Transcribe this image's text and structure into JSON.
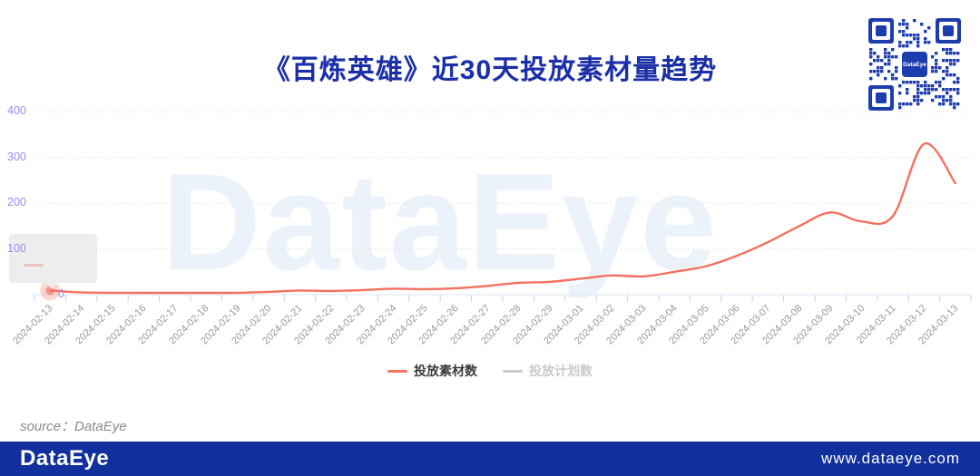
{
  "title": "《百炼英雄》近30天投放素材量趋势",
  "watermark": "DataEye",
  "source_text": "source：DataEye",
  "footer": {
    "logo": "DataEye",
    "url": "www.dataeye.com"
  },
  "qr": {
    "label": "DataEye"
  },
  "legend": [
    {
      "label": "投放素材数",
      "color": "#f4705f",
      "active": true
    },
    {
      "label": "投放计划数",
      "color": "#c9c9c9",
      "active": false
    }
  ],
  "tooltip": {
    "visible": true,
    "series_dash_color": "#f4705f"
  },
  "colors": {
    "title_blue": "#1b2fa8",
    "footer_blue": "#12309d",
    "qr_blue": "#1d3cae",
    "line_salmon": "#f4705f",
    "axis_label_purple": "#9a8cec",
    "x_label_gray": "#999999",
    "watermark_blue": "#ecf2fa"
  },
  "chart_data": {
    "type": "line",
    "title": "《百炼英雄》近30天投放素材量趋势",
    "smooth": true,
    "x": [
      "2024-02-13",
      "2024-02-14",
      "2024-02-15",
      "2024-02-16",
      "2024-02-17",
      "2024-02-18",
      "2024-02-19",
      "2024-02-20",
      "2024-02-21",
      "2024-02-22",
      "2024-02-23",
      "2024-02-24",
      "2024-02-25",
      "2024-02-26",
      "2024-02-27",
      "2024-02-28",
      "2024-02-29",
      "2024-03-01",
      "2024-03-02",
      "2024-03-03",
      "2024-03-04",
      "2024-03-05",
      "2024-03-06",
      "2024-03-07",
      "2024-03-08",
      "2024-03-09",
      "2024-03-10",
      "2024-03-11",
      "2024-03-12",
      "2024-03-13"
    ],
    "series": [
      {
        "name": "投放素材数",
        "color": "#f4705f",
        "visible": true,
        "values": [
          9,
          5,
          4,
          3,
          3,
          3,
          4,
          6,
          9,
          8,
          10,
          13,
          12,
          14,
          19,
          26,
          28,
          35,
          42,
          40,
          50,
          62,
          85,
          115,
          150,
          180,
          160,
          172,
          330,
          244
        ]
      },
      {
        "name": "投放计划数",
        "color": "#c9c9c9",
        "visible": false,
        "values": []
      }
    ],
    "ylabel": "",
    "xlabel": "",
    "ylim": [
      0,
      400
    ],
    "yticks": [
      0,
      100,
      200,
      300,
      400
    ],
    "grid": "horizontal-dotted",
    "legend_position": "bottom",
    "highlighted_point": {
      "x": "2024-02-13",
      "series": "投放素材数"
    }
  }
}
